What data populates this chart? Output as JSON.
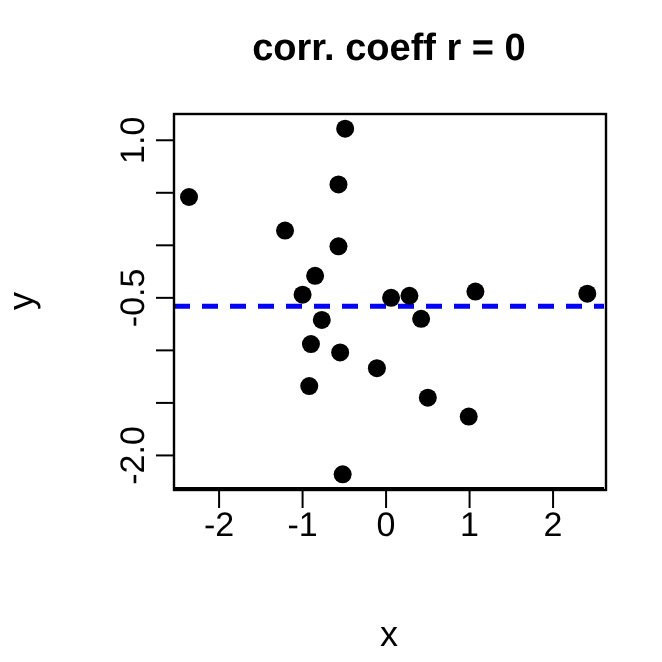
{
  "chart_data": {
    "type": "scatter",
    "title": "corr. coeff r = 0",
    "xlabel": "x",
    "ylabel": "y",
    "x": [
      -2.36,
      -0.49,
      -0.57,
      -1.21,
      -0.57,
      -0.85,
      -1.0,
      -0.77,
      -0.9,
      -0.55,
      -0.11,
      -0.92,
      -0.52,
      0.06,
      0.28,
      0.42,
      0.5,
      0.99,
      1.07,
      2.41
    ],
    "series": [
      {
        "color": "#000000",
        "values": [
          0.46,
          1.11,
          0.58,
          0.14,
          -0.01,
          -0.29,
          -0.47,
          -0.71,
          -0.94,
          -1.02,
          -1.17,
          -1.34,
          -2.18,
          -0.5,
          -0.48,
          -0.7,
          -1.45,
          -1.63,
          -0.44,
          -0.46
        ]
      }
    ],
    "marker": "circle",
    "xlim": [
      -2.54,
      2.61
    ],
    "xticks": [
      -2,
      -1,
      0,
      1,
      2
    ],
    "ylim": [
      -2.31,
      1.25
    ],
    "yticks": [
      {
        "value": 1.0,
        "label": "1.0"
      },
      {
        "value": 0.5,
        "label": null
      },
      {
        "value": 0.0,
        "label": null
      },
      {
        "value": -0.5,
        "label": "-0.5"
      },
      {
        "value": -1.0,
        "label": null
      },
      {
        "value": -1.5,
        "label": null
      },
      {
        "value": -2.0,
        "label": "-2.0"
      }
    ],
    "ref_lines": [
      {
        "axis": "y",
        "value": -0.58,
        "color": "#0000ff",
        "line_style": "dashed"
      }
    ]
  }
}
